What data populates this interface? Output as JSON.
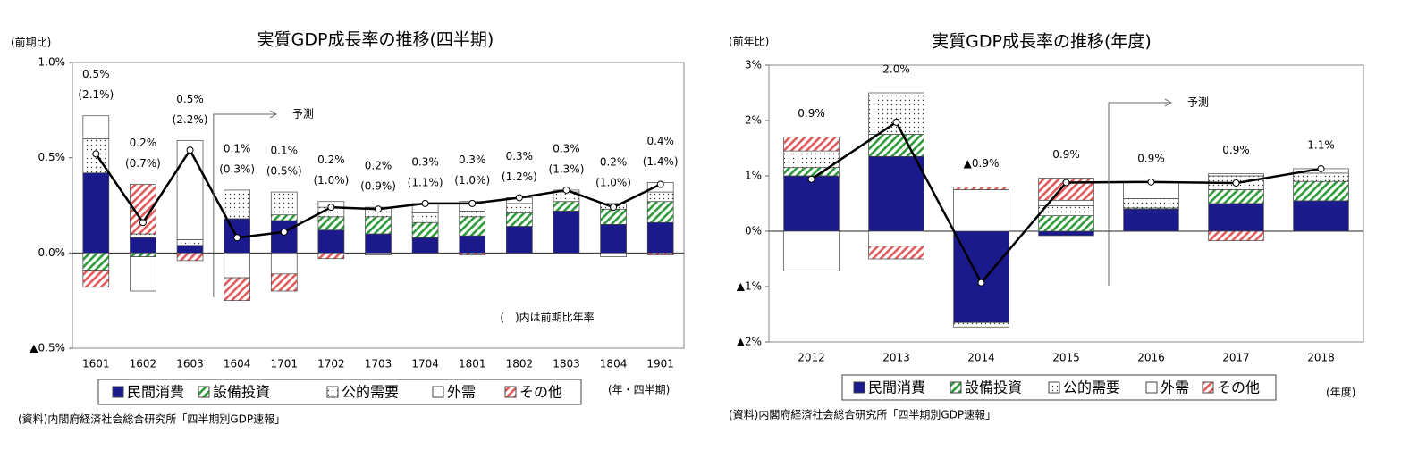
{
  "chart_data": [
    {
      "type": "combo",
      "title": "実質GDP成長率の推移(四半期)",
      "y_label": "(前期比)",
      "x_label": "(年・四半期)",
      "annotations": [
        "予測",
        "(　)内は前期比年率"
      ],
      "source": "(資料)内閣府経済社会総合研究所「四半期別GDP速報」",
      "categories": [
        "1601",
        "1602",
        "1603",
        "1604",
        "1701",
        "1702",
        "1703",
        "1704",
        "1801",
        "1802",
        "1803",
        "1804",
        "1901"
      ],
      "ylim": [
        -0.5,
        1.0
      ],
      "yticks": [
        {
          "value": -0.5,
          "label": "▲0.5%"
        },
        {
          "value": 0.0,
          "label": "0.0%"
        },
        {
          "value": 0.5,
          "label": "0.5%"
        },
        {
          "value": 1.0,
          "label": "1.0%"
        }
      ],
      "series": [
        {
          "name": "民間消費",
          "color": "#1a1a8c",
          "pattern": "solid",
          "values": [
            0.42,
            0.08,
            0.04,
            0.18,
            0.17,
            0.12,
            0.1,
            0.08,
            0.09,
            0.14,
            0.22,
            0.15,
            0.16
          ]
        },
        {
          "name": "設備投資",
          "color": "#2e9a3a",
          "pattern": "hatch",
          "values": [
            -0.09,
            -0.02,
            0.0,
            0.0,
            0.03,
            0.07,
            0.09,
            0.08,
            0.1,
            0.07,
            0.05,
            0.08,
            0.11
          ]
        },
        {
          "name": "公的需要",
          "color": "#333333",
          "pattern": "dots",
          "values": [
            0.18,
            0.02,
            0.03,
            0.15,
            0.12,
            0.05,
            0.05,
            0.05,
            0.03,
            0.05,
            0.05,
            0.03,
            0.05
          ]
        },
        {
          "name": "外需",
          "color": "#ffffff",
          "pattern": "solid",
          "values": [
            0.12,
            -0.18,
            0.52,
            -0.13,
            -0.11,
            0.03,
            -0.01,
            0.05,
            0.05,
            0.03,
            0.01,
            -0.02,
            0.05
          ]
        },
        {
          "name": "その他",
          "color": "#e05a5a",
          "pattern": "hatch",
          "values": [
            -0.09,
            0.26,
            -0.04,
            -0.12,
            -0.09,
            -0.03,
            0.0,
            0.0,
            -0.01,
            0.0,
            0.0,
            0.0,
            -0.01
          ]
        }
      ],
      "line": {
        "color": "#000000",
        "values": [
          0.52,
          0.16,
          0.54,
          0.08,
          0.11,
          0.24,
          0.23,
          0.26,
          0.26,
          0.29,
          0.33,
          0.24,
          0.36
        ],
        "value_labels": [
          "0.5%",
          "0.2%",
          "0.5%",
          "0.1%",
          "0.1%",
          "0.2%",
          "0.2%",
          "0.3%",
          "0.3%",
          "0.3%",
          "0.3%",
          "0.2%",
          "0.4%"
        ],
        "annualized_labels": [
          "(2.1%)",
          "(0.7%)",
          "(2.2%)",
          "(0.3%)",
          "(0.5%)",
          "(1.0%)",
          "(0.9%)",
          "(1.1%)",
          "(1.0%)",
          "(1.2%)",
          "(1.3%)",
          "(1.0%)",
          "(1.4%)"
        ]
      }
    },
    {
      "type": "combo",
      "title": "実質GDP成長率の推移(年度)",
      "y_label": "(前年比)",
      "x_label": "(年度)",
      "annotations": [
        "予測"
      ],
      "source": "(資料)内閣府経済社会総合研究所「四半期別GDP速報」",
      "categories": [
        "2012",
        "2013",
        "2014",
        "2015",
        "2016",
        "2017",
        "2018"
      ],
      "ylim": [
        -2,
        3
      ],
      "yticks": [
        {
          "value": -2,
          "label": "▲2%"
        },
        {
          "value": -1,
          "label": "▲1%"
        },
        {
          "value": 0,
          "label": "0%"
        },
        {
          "value": 1,
          "label": "1%"
        },
        {
          "value": 2,
          "label": "2%"
        },
        {
          "value": 3,
          "label": "3%"
        }
      ],
      "series": [
        {
          "name": "民間消費",
          "color": "#1a1a8c",
          "pattern": "solid",
          "values": [
            1.0,
            1.35,
            -1.65,
            -0.08,
            0.4,
            0.5,
            0.55
          ]
        },
        {
          "name": "設備投資",
          "color": "#2e9a3a",
          "pattern": "hatch",
          "values": [
            0.15,
            0.4,
            0.0,
            0.28,
            0.02,
            0.25,
            0.35
          ]
        },
        {
          "name": "公的需要",
          "color": "#333333",
          "pattern": "dots",
          "values": [
            0.3,
            0.75,
            -0.08,
            0.18,
            0.17,
            0.25,
            0.15
          ]
        },
        {
          "name": "外需",
          "color": "#ffffff",
          "pattern": "solid",
          "values": [
            -0.72,
            -0.27,
            0.75,
            0.1,
            0.3,
            0.04,
            0.08
          ]
        },
        {
          "name": "その他",
          "color": "#e05a5a",
          "pattern": "hatch",
          "values": [
            0.25,
            -0.23,
            0.05,
            0.4,
            0.0,
            -0.17,
            0.0
          ]
        }
      ],
      "line": {
        "color": "#000000",
        "values": [
          0.94,
          1.97,
          -0.93,
          0.88,
          0.89,
          0.87,
          1.13
        ],
        "value_labels": [
          "0.9%",
          "2.0%",
          "▲0.9%",
          "0.9%",
          "0.9%",
          "0.9%",
          "1.1%"
        ]
      }
    }
  ]
}
